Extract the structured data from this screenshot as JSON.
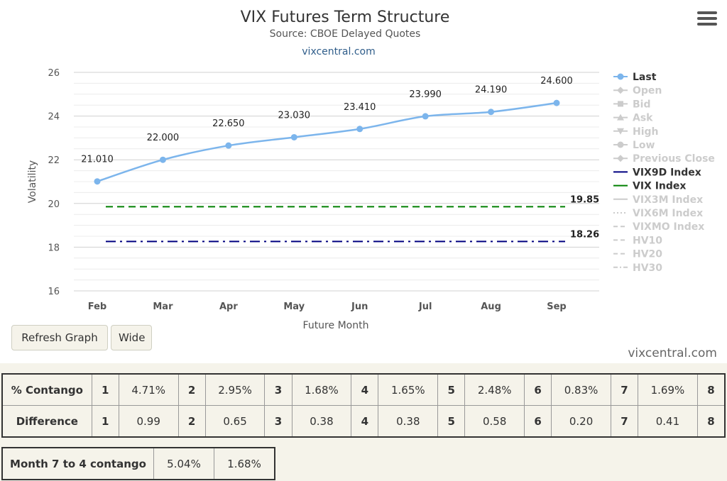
{
  "header": {
    "title": "VIX Futures Term Structure",
    "subtitle": "Source: CBOE Delayed Quotes",
    "site_link": "vixcentral.com"
  },
  "toolbar": {
    "refresh_label": "Refresh Graph",
    "wide_label": "Wide",
    "menu_icon": "hamburger-menu-icon"
  },
  "watermark": "vixcentral.com",
  "chart_data": {
    "type": "line",
    "title": "VIX Futures Term Structure",
    "subtitle": "Source: CBOE Delayed Quotes",
    "xlabel": "Future Month",
    "ylabel": "Volatility",
    "categories": [
      "Feb",
      "Mar",
      "Apr",
      "May",
      "Jun",
      "Jul",
      "Aug",
      "Sep"
    ],
    "ylim": [
      16,
      26
    ],
    "yticks": [
      "16",
      "18",
      "20",
      "22",
      "24",
      "26"
    ],
    "grid": true,
    "legend_position": "right",
    "series": [
      {
        "name": "Last",
        "values": [
          21.01,
          22.0,
          22.65,
          23.03,
          23.41,
          23.99,
          24.19,
          24.6
        ],
        "labels": [
          "21.010",
          "22.000",
          "22.650",
          "23.030",
          "23.410",
          "23.990",
          "24.190",
          "24.600"
        ],
        "color": "#7cb5ec",
        "style": "solid-marker",
        "visible": true
      },
      {
        "name": "VIX9D Index",
        "value": 18.26,
        "label": "18.26",
        "color": "#000080",
        "style": "dashdot",
        "visible": true
      },
      {
        "name": "VIX Index",
        "value": 19.85,
        "label": "19.85",
        "color": "#008000",
        "style": "dash",
        "visible": true
      }
    ],
    "legend": [
      {
        "name": "Last",
        "visible": true,
        "color": "#7cb5ec",
        "symbol": "circle-line"
      },
      {
        "name": "Open",
        "visible": false,
        "color": "#cccccc",
        "symbol": "diamond-line"
      },
      {
        "name": "Bid",
        "visible": false,
        "color": "#cccccc",
        "symbol": "square-line"
      },
      {
        "name": "Ask",
        "visible": false,
        "color": "#cccccc",
        "symbol": "triangle-line"
      },
      {
        "name": "High",
        "visible": false,
        "color": "#cccccc",
        "symbol": "triangle-down-line"
      },
      {
        "name": "Low",
        "visible": false,
        "color": "#cccccc",
        "symbol": "circle-line"
      },
      {
        "name": "Previous Close",
        "visible": false,
        "color": "#cccccc",
        "symbol": "diamond-line"
      },
      {
        "name": "VIX9D Index",
        "visible": true,
        "color": "#000080",
        "symbol": "line"
      },
      {
        "name": "VIX Index",
        "visible": true,
        "color": "#008000",
        "symbol": "line"
      },
      {
        "name": "VIX3M Index",
        "visible": false,
        "color": "#cccccc",
        "symbol": "line"
      },
      {
        "name": "VIX6M Index",
        "visible": false,
        "color": "#cccccc",
        "symbol": "dotted-line"
      },
      {
        "name": "VIXMO Index",
        "visible": false,
        "color": "#cccccc",
        "symbol": "dashed-line"
      },
      {
        "name": "HV10",
        "visible": false,
        "color": "#cccccc",
        "symbol": "dashed-line"
      },
      {
        "name": "HV20",
        "visible": false,
        "color": "#cccccc",
        "symbol": "dashed-line"
      },
      {
        "name": "HV30",
        "visible": false,
        "color": "#cccccc",
        "symbol": "dashdot-line"
      }
    ]
  },
  "contango_table": {
    "rows": [
      {
        "label": "% Contango",
        "cells": [
          [
            "1",
            "4.71%"
          ],
          [
            "2",
            "2.95%"
          ],
          [
            "3",
            "1.68%"
          ],
          [
            "4",
            "1.65%"
          ],
          [
            "5",
            "2.48%"
          ],
          [
            "6",
            "0.83%"
          ],
          [
            "7",
            "1.69%"
          ]
        ],
        "last": "8"
      },
      {
        "label": "Difference",
        "cells": [
          [
            "1",
            "0.99"
          ],
          [
            "2",
            "0.65"
          ],
          [
            "3",
            "0.38"
          ],
          [
            "4",
            "0.38"
          ],
          [
            "5",
            "0.58"
          ],
          [
            "6",
            "0.20"
          ],
          [
            "7",
            "0.41"
          ]
        ],
        "last": "8"
      }
    ]
  },
  "month_table": {
    "label": "Month 7 to 4 contango",
    "value1": "5.04%",
    "value2": "1.68%"
  }
}
